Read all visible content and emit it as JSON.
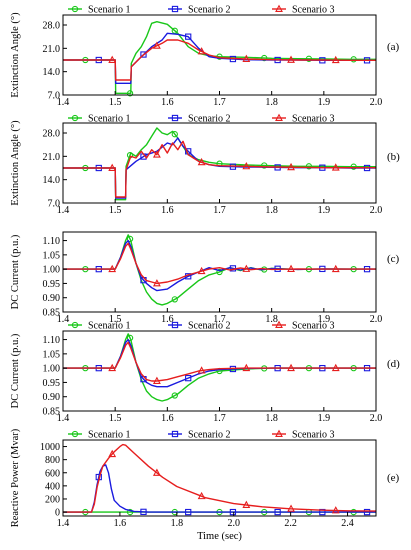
{
  "colors": {
    "scenario1": "#19c719",
    "scenario2": "#1a1adf",
    "scenario3": "#e61e1e"
  },
  "chart_data": [
    {
      "type": "line",
      "panel_label": "(a)",
      "ylabel": "Extinction Angle (°)",
      "xlabel": "",
      "xlim": [
        1.4,
        2.0
      ],
      "ylim": [
        7.0,
        31.0
      ],
      "xticks": [
        1.4,
        1.5,
        1.6,
        1.7,
        1.8,
        1.9,
        2.0
      ],
      "xtick_labels": [
        "1.4",
        "1.5",
        "1.6",
        "1.7",
        "1.8",
        "1.9",
        "2.0"
      ],
      "yticks": [
        7.0,
        14.0,
        21.0,
        28.0
      ],
      "ytick_labels": [
        "7.0",
        "14.0",
        "21.0",
        "28.0"
      ],
      "grid": false,
      "legend": "top",
      "series": [
        {
          "name": "Scenario 1",
          "marker": "circle",
          "x": [
            1.4,
            1.5,
            1.501,
            1.51,
            1.53,
            1.531,
            1.54,
            1.55,
            1.56,
            1.57,
            1.58,
            1.6,
            1.62,
            1.64,
            1.66,
            1.68,
            1.7,
            1.75,
            1.8,
            1.85,
            1.9,
            1.95,
            2.0
          ],
          "y": [
            17.5,
            17.5,
            7.5,
            7.5,
            7.5,
            16.5,
            19.5,
            21.5,
            24.5,
            28.5,
            29,
            28.2,
            25.5,
            21.5,
            19.5,
            18.8,
            18.5,
            18.3,
            18,
            17.9,
            17.8,
            17.7,
            17.7
          ]
        },
        {
          "name": "Scenario 2",
          "marker": "square",
          "x": [
            1.4,
            1.5,
            1.501,
            1.53,
            1.531,
            1.55,
            1.57,
            1.59,
            1.6,
            1.62,
            1.64,
            1.66,
            1.68,
            1.7,
            1.75,
            1.8,
            1.85,
            1.9,
            1.95,
            2.0
          ],
          "y": [
            17.5,
            17.5,
            10.5,
            10.5,
            15.5,
            18.5,
            21.5,
            23.5,
            25.5,
            25.2,
            24.5,
            21,
            18.5,
            18,
            17.6,
            17.5,
            17.5,
            17.4,
            17.4,
            17.4
          ]
        },
        {
          "name": "Scenario 3",
          "marker": "triangle",
          "x": [
            1.4,
            1.5,
            1.501,
            1.53,
            1.531,
            1.55,
            1.57,
            1.59,
            1.6,
            1.62,
            1.64,
            1.66,
            1.68,
            1.7,
            1.75,
            1.8,
            1.85,
            1.9,
            1.95,
            2.0
          ],
          "y": [
            17.5,
            17.5,
            11.5,
            11.5,
            15.5,
            18.5,
            21,
            22.5,
            23.5,
            23.5,
            22.5,
            20.5,
            19,
            18.2,
            17.8,
            17.6,
            17.5,
            17.5,
            17.4,
            17.4
          ]
        }
      ]
    },
    {
      "type": "line",
      "panel_label": "(b)",
      "ylabel": "Extinction Angle (°)",
      "xlabel": "",
      "xlim": [
        1.4,
        2.0
      ],
      "ylim": [
        7.0,
        31.0
      ],
      "xticks": [
        1.4,
        1.5,
        1.6,
        1.7,
        1.8,
        1.9,
        2.0
      ],
      "xtick_labels": [
        "1.4",
        "1.5",
        "1.6",
        "1.7",
        "1.8",
        "1.9",
        "2.0"
      ],
      "yticks": [
        7.0,
        14.0,
        21.0,
        28.0
      ],
      "ytick_labels": [
        "7.0",
        "14.0",
        "21.0",
        "28.0"
      ],
      "grid": false,
      "legend": "top",
      "series": [
        {
          "name": "Scenario 1",
          "marker": "circle",
          "x": [
            1.4,
            1.5,
            1.501,
            1.52,
            1.521,
            1.53,
            1.54,
            1.55,
            1.56,
            1.57,
            1.58,
            1.59,
            1.6,
            1.61,
            1.62,
            1.63,
            1.64,
            1.66,
            1.68,
            1.7,
            1.75,
            1.8,
            1.85,
            1.9,
            1.95,
            2.0
          ],
          "y": [
            17.5,
            17.5,
            8,
            8,
            18,
            22,
            21,
            23,
            24.5,
            27,
            29.5,
            28,
            27.5,
            28.5,
            26.5,
            24,
            21.5,
            20,
            19.2,
            18.8,
            18.4,
            18.2,
            18,
            18,
            17.9,
            17.9
          ]
        },
        {
          "name": "Scenario 2",
          "marker": "square",
          "x": [
            1.4,
            1.5,
            1.501,
            1.52,
            1.521,
            1.54,
            1.56,
            1.58,
            1.6,
            1.61,
            1.62,
            1.63,
            1.64,
            1.65,
            1.66,
            1.68,
            1.7,
            1.75,
            1.8,
            1.85,
            1.9,
            1.95,
            2.0
          ],
          "y": [
            17.5,
            17.5,
            8.5,
            8.5,
            17,
            19.5,
            21.5,
            22.5,
            25,
            24.5,
            26.5,
            24,
            22.5,
            21,
            19.5,
            18.5,
            18,
            17.8,
            17.7,
            17.6,
            17.6,
            17.5,
            17.5
          ]
        },
        {
          "name": "Scenario 3",
          "marker": "triangle",
          "x": [
            1.4,
            1.5,
            1.501,
            1.52,
            1.521,
            1.53,
            1.54,
            1.55,
            1.56,
            1.57,
            1.58,
            1.59,
            1.6,
            1.61,
            1.62,
            1.63,
            1.64,
            1.65,
            1.66,
            1.68,
            1.7,
            1.75,
            1.8,
            1.85,
            1.9,
            1.95,
            2.0
          ],
          "y": [
            17.5,
            17.5,
            8.8,
            8.8,
            17,
            21,
            20.5,
            22.5,
            20.5,
            23,
            21.5,
            24.5,
            22,
            25,
            23,
            25.5,
            21.5,
            20.5,
            19.5,
            18.5,
            18.2,
            18,
            17.8,
            17.7,
            17.6,
            17.6,
            17.6
          ]
        }
      ]
    },
    {
      "type": "line",
      "panel_label": "(c)",
      "ylabel": "DC Current (p.u.)",
      "xlabel": "",
      "xlim": [
        1.4,
        2.0
      ],
      "ylim": [
        0.85,
        1.13
      ],
      "xticks": [
        1.4,
        1.5,
        1.6,
        1.7,
        1.8,
        1.9,
        2.0
      ],
      "xtick_labels": [
        "1.4",
        "1.5",
        "1.6",
        "1.7",
        "1.8",
        "1.9",
        "2.0"
      ],
      "yticks": [
        0.85,
        0.9,
        0.95,
        1.0,
        1.05,
        1.1
      ],
      "ytick_labels": [
        "0.85",
        "0.90",
        "0.95",
        "1.00",
        "1.05",
        "1.10"
      ],
      "grid": false,
      "legend": "none",
      "series": [
        {
          "name": "Scenario 1",
          "marker": "circle",
          "x": [
            1.4,
            1.5,
            1.51,
            1.52,
            1.525,
            1.53,
            1.54,
            1.55,
            1.56,
            1.57,
            1.58,
            1.59,
            1.6,
            1.62,
            1.64,
            1.66,
            1.68,
            1.7,
            1.72,
            1.74,
            1.76,
            1.78,
            1.8,
            1.85,
            1.9,
            1.95,
            2.0
          ],
          "y": [
            1.0,
            1.0,
            1.04,
            1.1,
            1.12,
            1.1,
            1.02,
            0.96,
            0.92,
            0.895,
            0.88,
            0.875,
            0.88,
            0.9,
            0.93,
            0.96,
            0.98,
            0.99,
            1.005,
            0.995,
            1.005,
            0.997,
            1.003,
            0.999,
            1.001,
            1.0,
            1.0
          ]
        },
        {
          "name": "Scenario 2",
          "marker": "square",
          "x": [
            1.4,
            1.5,
            1.51,
            1.52,
            1.525,
            1.53,
            1.54,
            1.55,
            1.56,
            1.57,
            1.58,
            1.6,
            1.62,
            1.64,
            1.66,
            1.68,
            1.7,
            1.72,
            1.74,
            1.76,
            1.78,
            1.8,
            1.85,
            1.9,
            1.95,
            2.0
          ],
          "y": [
            1.0,
            1.0,
            1.04,
            1.09,
            1.1,
            1.08,
            1.02,
            0.97,
            0.95,
            0.935,
            0.925,
            0.93,
            0.955,
            0.975,
            0.99,
            1.005,
            0.995,
            1.005,
            0.997,
            1.004,
            0.998,
            1.002,
            0.999,
            1.001,
            1.0,
            1.0
          ]
        },
        {
          "name": "Scenario 3",
          "marker": "triangle",
          "x": [
            1.4,
            1.5,
            1.51,
            1.52,
            1.525,
            1.53,
            1.54,
            1.55,
            1.56,
            1.57,
            1.58,
            1.6,
            1.62,
            1.64,
            1.66,
            1.68,
            1.7,
            1.72,
            1.74,
            1.76,
            1.78,
            1.8,
            1.85,
            1.9,
            1.95,
            2.0
          ],
          "y": [
            1.0,
            1.0,
            1.035,
            1.08,
            1.09,
            1.07,
            1.02,
            0.98,
            0.96,
            0.955,
            0.95,
            0.955,
            0.965,
            0.98,
            0.99,
            1.0,
            1.005,
            0.997,
            1.004,
            0.998,
            1.002,
            0.999,
            1.001,
            1.0,
            1.0,
            1.0
          ]
        }
      ]
    },
    {
      "type": "line",
      "panel_label": "(d)",
      "ylabel": "DC Current (p.u.)",
      "xlabel": "",
      "xlim": [
        1.4,
        2.0
      ],
      "ylim": [
        0.85,
        1.13
      ],
      "xticks": [
        1.4,
        1.5,
        1.6,
        1.7,
        1.8,
        1.9,
        2.0
      ],
      "xtick_labels": [
        "1.4",
        "1.5",
        "1.6",
        "1.7",
        "1.8",
        "1.9",
        "2.0"
      ],
      "yticks": [
        0.85,
        0.9,
        0.95,
        1.0,
        1.05,
        1.1
      ],
      "ytick_labels": [
        "0.85",
        "0.90",
        "0.95",
        "1.00",
        "1.05",
        "1.10"
      ],
      "grid": false,
      "legend": "top",
      "series": [
        {
          "name": "Scenario 1",
          "marker": "circle",
          "x": [
            1.4,
            1.5,
            1.51,
            1.52,
            1.525,
            1.53,
            1.54,
            1.55,
            1.56,
            1.57,
            1.58,
            1.59,
            1.6,
            1.62,
            1.64,
            1.66,
            1.68,
            1.7,
            1.75,
            1.8,
            1.85,
            1.9,
            1.95,
            2.0
          ],
          "y": [
            1.0,
            1.0,
            1.04,
            1.1,
            1.12,
            1.1,
            1.02,
            0.96,
            0.92,
            0.9,
            0.89,
            0.885,
            0.89,
            0.91,
            0.94,
            0.965,
            0.98,
            0.99,
            0.997,
            1.0,
            1.0,
            1.0,
            1.0,
            1.0
          ]
        },
        {
          "name": "Scenario 2",
          "marker": "square",
          "x": [
            1.4,
            1.5,
            1.51,
            1.52,
            1.525,
            1.53,
            1.54,
            1.55,
            1.56,
            1.57,
            1.58,
            1.6,
            1.62,
            1.64,
            1.66,
            1.68,
            1.7,
            1.75,
            1.8,
            1.85,
            1.9,
            1.95,
            2.0
          ],
          "y": [
            1.0,
            1.0,
            1.04,
            1.09,
            1.1,
            1.08,
            1.02,
            0.97,
            0.95,
            0.94,
            0.935,
            0.935,
            0.95,
            0.965,
            0.98,
            0.99,
            0.995,
            0.999,
            1.0,
            1.0,
            1.0,
            1.0,
            1.0
          ]
        },
        {
          "name": "Scenario 3",
          "marker": "triangle",
          "x": [
            1.4,
            1.5,
            1.51,
            1.52,
            1.525,
            1.53,
            1.54,
            1.55,
            1.56,
            1.57,
            1.58,
            1.6,
            1.62,
            1.64,
            1.66,
            1.68,
            1.7,
            1.75,
            1.8,
            1.85,
            1.9,
            1.95,
            2.0
          ],
          "y": [
            1.0,
            1.0,
            1.035,
            1.08,
            1.09,
            1.07,
            1.02,
            0.98,
            0.96,
            0.955,
            0.955,
            0.96,
            0.97,
            0.98,
            0.99,
            0.995,
            0.998,
            1.0,
            1.0,
            1.0,
            1.0,
            1.0,
            1.0
          ]
        }
      ]
    },
    {
      "type": "line",
      "panel_label": "(e)",
      "ylabel": "Reactive Power (Mvar)",
      "xlabel": "Time (sec)",
      "xlim": [
        1.4,
        2.5
      ],
      "ylim": [
        -60,
        1100
      ],
      "xticks": [
        1.4,
        1.6,
        1.8,
        2.0,
        2.2,
        2.4
      ],
      "xtick_labels": [
        "1.4",
        "1.6",
        "1.8",
        "2.0",
        "2.2",
        "2.4"
      ],
      "yticks": [
        0,
        200,
        400,
        600,
        800,
        1000
      ],
      "ytick_labels": [
        "0",
        "200",
        "400",
        "600",
        "800",
        "1000"
      ],
      "grid": false,
      "legend": "top",
      "series": [
        {
          "name": "Scenario 1",
          "marker": "circle",
          "x": [
            1.4,
            1.6,
            1.8,
            2.0,
            2.2,
            2.4,
            2.5
          ],
          "y": [
            0,
            0,
            0,
            0,
            0,
            0,
            0
          ]
        },
        {
          "name": "Scenario 2",
          "marker": "square",
          "x": [
            1.4,
            1.5,
            1.51,
            1.52,
            1.53,
            1.54,
            1.55,
            1.56,
            1.57,
            1.58,
            1.6,
            1.62,
            1.65,
            1.7,
            1.8,
            2.0,
            2.5
          ],
          "y": [
            0,
            0,
            150,
            420,
            620,
            700,
            720,
            600,
            350,
            180,
            90,
            40,
            10,
            0,
            0,
            0,
            0
          ]
        },
        {
          "name": "Scenario 3",
          "marker": "triangle",
          "x": [
            1.4,
            1.5,
            1.51,
            1.52,
            1.53,
            1.54,
            1.56,
            1.58,
            1.6,
            1.61,
            1.62,
            1.65,
            1.7,
            1.75,
            1.8,
            1.9,
            2.0,
            2.1,
            2.2,
            2.3,
            2.4,
            2.5
          ],
          "y": [
            0,
            0,
            120,
            380,
            560,
            700,
            820,
            920,
            1000,
            1030,
            1020,
            900,
            700,
            530,
            390,
            220,
            130,
            80,
            50,
            30,
            20,
            15
          ]
        }
      ]
    }
  ]
}
